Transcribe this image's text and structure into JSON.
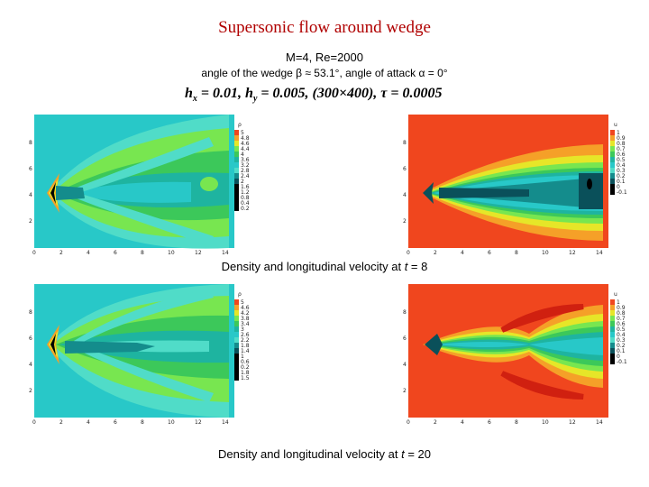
{
  "header": {
    "title": "Supersonic flow around wedge",
    "params": "M=4,  Re=2000",
    "angle": "angle of the wedge β ≈ 53.1°, angle of attack α = 0°",
    "grid_hx": "h",
    "grid_hx_val": " = 0.01, ",
    "grid_hy": "h",
    "grid_hy_val": " = 0.005, (300×400), ",
    "grid_tau": "τ",
    "grid_tau_val": " = 0.0005"
  },
  "captions": [
    {
      "text": "Density and longitudinal velocity at ",
      "var": "t",
      "val": " = 8"
    },
    {
      "text": "Density and longitudinal velocity at ",
      "var": "t",
      "val": " = 20"
    }
  ],
  "plots": {
    "x_ticks": [
      "0",
      "2",
      "4",
      "6",
      "8",
      "10",
      "12",
      "14"
    ],
    "y_ticks": [
      "2",
      "4",
      "6",
      "8"
    ],
    "density_legend": {
      "symbol": "ρ",
      "levels_t8": [
        "5",
        "4.8",
        "4.6",
        "4.4",
        "4",
        "3.6",
        "3.2",
        "2.8",
        "2.4",
        "2",
        "1.6",
        "1.2",
        "0.8",
        "0.4",
        "0.2"
      ],
      "levels_t20": [
        "5",
        "4.6",
        "4.2",
        "3.8",
        "3.4",
        "3",
        "2.6",
        "2.2",
        "1.8",
        "1.4",
        "1",
        "0.6",
        "0.2",
        "1.8",
        "1.5"
      ]
    },
    "velocity_legend": {
      "symbol": "u",
      "levels": [
        "1",
        "0.9",
        "0.8",
        "0.7",
        "0.6",
        "0.5",
        "0.4",
        "0.3",
        "0.2",
        "0.1",
        "0",
        "-0.1"
      ]
    },
    "colors": {
      "red": "#f0461e",
      "orange": "#f5a028",
      "yellow": "#e6e628",
      "lime": "#78e650",
      "green": "#3cc85a",
      "teal": "#1eb4a0",
      "cyan": "#28c8c8",
      "aqua": "#50dcc8",
      "dark_teal": "#148c8c",
      "dark": "#0a505a",
      "black": "#000000"
    }
  }
}
